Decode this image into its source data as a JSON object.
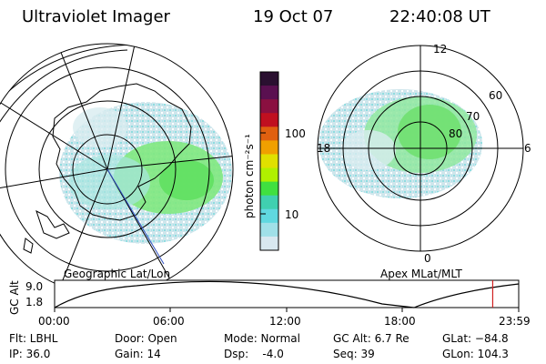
{
  "header": {
    "instrument": "Ultraviolet Imager",
    "date": "19 Oct 07",
    "time": "22:40:08 UT"
  },
  "colorbar": {
    "label": "photon cm⁻²s⁻¹",
    "ticks": [
      "100",
      "10"
    ],
    "colors": [
      "#2a1030",
      "#5a1050",
      "#8a1040",
      "#c01020",
      "#e06010",
      "#f0a000",
      "#e0e000",
      "#b0f000",
      "#40e040",
      "#40d0b0",
      "#60d8e0",
      "#a0e0e8",
      "#d8e8f0"
    ]
  },
  "left_panel": {
    "caption": "Geographic Lat/Lon"
  },
  "right_panel": {
    "caption": "Apex MLat/MLT",
    "mlt_labels": {
      "top": "12",
      "left": "18",
      "right": "6",
      "bottom": "0"
    },
    "lat_labels": [
      "60",
      "70",
      "80"
    ]
  },
  "timeline": {
    "axis_label": "GC Alt",
    "y_ticks": [
      "9.0",
      "1.8"
    ],
    "x_ticks": [
      "00:00",
      "06:00",
      "12:00",
      "18:00",
      "23:59"
    ],
    "current_marker_fraction": 0.944
  },
  "status": {
    "row1": {
      "flt": "Flt: LBHL",
      "door": "Door: Open",
      "mode": "Mode: Normal",
      "gc_alt": "GC Alt: 6.7 Re",
      "glat": "GLat: −84.8"
    },
    "row2": {
      "ip": "IP: 36.0",
      "gain": "Gain: 14",
      "dsp": "Dsp:    -4.0",
      "seq": "Seq: 39",
      "glon": "GLon: 104.3"
    }
  }
}
